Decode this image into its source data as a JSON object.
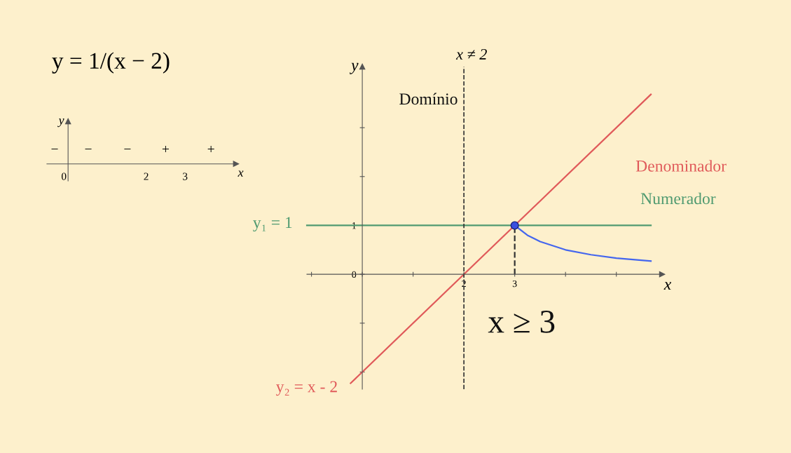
{
  "chart_data": [
    {
      "type": "line",
      "xlabel": "x",
      "ylabel": "y",
      "xlim": [
        -1.09,
        5.9
      ],
      "ylim": [
        -2.35,
        4.25
      ],
      "xticks": [
        {
          "value": -1,
          "label": null
        },
        {
          "value": 0,
          "label": null
        },
        {
          "value": 1,
          "label": null
        },
        2,
        3,
        {
          "value": 4,
          "label": null
        },
        {
          "value": 5,
          "label": null
        }
      ],
      "yticks": [
        {
          "value": -2,
          "label": null
        },
        {
          "value": -1,
          "label": null
        },
        0,
        1,
        {
          "value": 2,
          "label": null
        },
        {
          "value": 3,
          "label": null
        }
      ],
      "grid": false,
      "legend": false,
      "series": [
        {
          "name": "Denominador",
          "color": "#e05a5a",
          "x": [
            -0.23,
            5.68
          ],
          "values": [
            -2.23,
            3.68
          ]
        },
        {
          "name": "Numerador",
          "color": "#4f9a70",
          "x": [
            -1.09,
            5.68
          ],
          "values": [
            1,
            1
          ]
        },
        {
          "color": "#4466ee",
          "x": [
            3,
            3.25,
            3.5,
            4,
            4.5,
            5,
            5.68
          ],
          "values": [
            1,
            0.8,
            0.67,
            0.5,
            0.4,
            0.33,
            0.27
          ]
        },
        {
          "color": "#333333",
          "line_style": "dashed",
          "x": [
            3,
            3
          ],
          "values": [
            0,
            1
          ]
        },
        {
          "type": "scatter",
          "marker": "circle",
          "color": "#3b4fe0",
          "x": [
            3
          ],
          "values": [
            1
          ]
        }
      ],
      "ref_lines": [
        {
          "axis": "x",
          "value": 2,
          "label": "x ≠ 2",
          "color": "#333333",
          "line_style": "dashed"
        }
      ],
      "annotations": [
        "y₁ = 1",
        "y₂ = x - 2",
        "Domínio",
        "x ≥ 3"
      ]
    },
    {
      "type": "other",
      "title": "y = 1/(x − 2)",
      "xlabel": "x",
      "ylabel": "y",
      "annotations": [
        "−",
        "−",
        "−",
        "+",
        "+",
        "0",
        "2",
        "3"
      ]
    }
  ]
}
